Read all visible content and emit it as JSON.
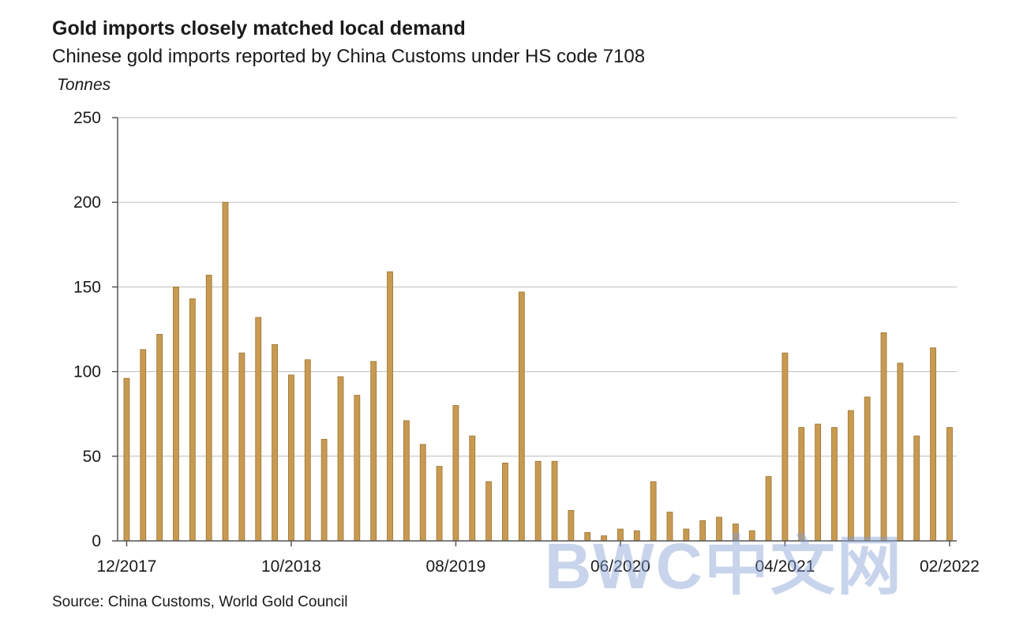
{
  "header": {
    "title": "Gold imports closely matched local demand",
    "subtitle": "Chinese gold imports reported by China Customs under HS code 7108",
    "unit": "Tonnes"
  },
  "footer": {
    "source": "Source: China Customs, World Gold Council"
  },
  "watermark": {
    "text": "BWC中文网"
  },
  "colors": {
    "bar": "#C89A51",
    "bar_edge": "#9A7430",
    "grid": "#BDBDBD",
    "axis": "#555555"
  },
  "chart_data": {
    "type": "bar",
    "title": "Gold imports closely matched local demand",
    "subtitle": "Chinese gold imports reported by China Customs under HS code 7108",
    "xlabel": "",
    "ylabel": "Tonnes",
    "ylim": [
      0,
      250
    ],
    "yticks": [
      0,
      50,
      100,
      150,
      200,
      250
    ],
    "grid": true,
    "legend": "none",
    "x_tick_labels": [
      {
        "index": 0,
        "label": "12/2017"
      },
      {
        "index": 10,
        "label": "10/2018"
      },
      {
        "index": 20,
        "label": "08/2019"
      },
      {
        "index": 30,
        "label": "06/2020"
      },
      {
        "index": 40,
        "label": "04/2021"
      },
      {
        "index": 50,
        "label": "02/2022"
      }
    ],
    "categories": [
      "12/2017",
      "01/2018",
      "02/2018",
      "03/2018",
      "04/2018",
      "05/2018",
      "06/2018",
      "07/2018",
      "08/2018",
      "09/2018",
      "10/2018",
      "11/2018",
      "12/2018",
      "01/2019",
      "02/2019",
      "03/2019",
      "04/2019",
      "05/2019",
      "06/2019",
      "07/2019",
      "08/2019",
      "09/2019",
      "10/2019",
      "11/2019",
      "12/2019",
      "01/2020",
      "02/2020",
      "03/2020",
      "04/2020",
      "05/2020",
      "06/2020",
      "07/2020",
      "08/2020",
      "09/2020",
      "10/2020",
      "11/2020",
      "12/2020",
      "01/2021",
      "02/2021",
      "03/2021",
      "04/2021",
      "05/2021",
      "06/2021",
      "07/2021",
      "08/2021",
      "09/2021",
      "10/2021",
      "11/2021",
      "12/2021",
      "01/2022",
      "02/2022"
    ],
    "values": [
      96,
      113,
      122,
      150,
      143,
      157,
      200,
      111,
      132,
      116,
      98,
      107,
      60,
      97,
      86,
      106,
      159,
      71,
      57,
      44,
      80,
      62,
      35,
      46,
      147,
      47,
      47,
      18,
      5,
      3,
      7,
      6,
      35,
      17,
      7,
      12,
      14,
      10,
      6,
      38,
      111,
      67,
      69,
      67,
      77,
      85,
      123,
      105,
      62,
      114,
      67
    ]
  }
}
